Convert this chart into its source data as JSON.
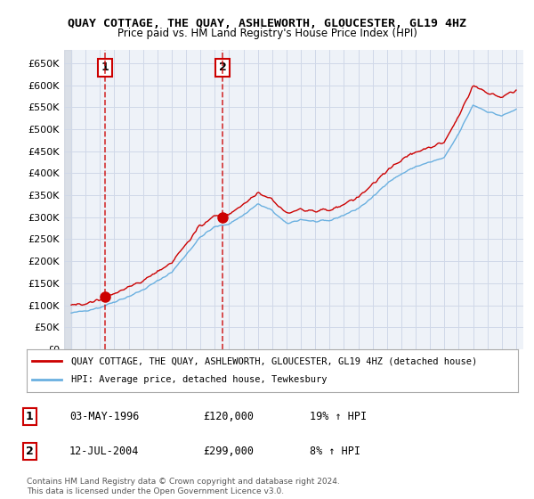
{
  "title": "QUAY COTTAGE, THE QUAY, ASHLEWORTH, GLOUCESTER, GL19 4HZ",
  "subtitle": "Price paid vs. HM Land Registry's House Price Index (HPI)",
  "legend_line1": "QUAY COTTAGE, THE QUAY, ASHLEWORTH, GLOUCESTER, GL19 4HZ (detached house)",
  "legend_line2": "HPI: Average price, detached house, Tewkesbury",
  "sale1_label": "1",
  "sale1_date": "03-MAY-1996",
  "sale1_price": "£120,000",
  "sale1_hpi": "19% ↑ HPI",
  "sale2_label": "2",
  "sale2_date": "12-JUL-2004",
  "sale2_price": "£299,000",
  "sale2_hpi": "8% ↑ HPI",
  "footer": "Contains HM Land Registry data © Crown copyright and database right 2024.\nThis data is licensed under the Open Government Licence v3.0.",
  "sale1_year": 1996.35,
  "sale1_value": 120000,
  "sale2_year": 2004.54,
  "sale2_value": 299000,
  "ylim": [
    0,
    680000
  ],
  "xlim_start": 1993.5,
  "xlim_end": 2025.5,
  "hpi_color": "#6ab0e0",
  "price_color": "#cc0000",
  "annotation_color": "#cc0000",
  "grid_color": "#d0d8e8",
  "bg_color": "#eef2f8",
  "plot_bg": "#ffffff",
  "hatch_color": "#c8cdd8"
}
